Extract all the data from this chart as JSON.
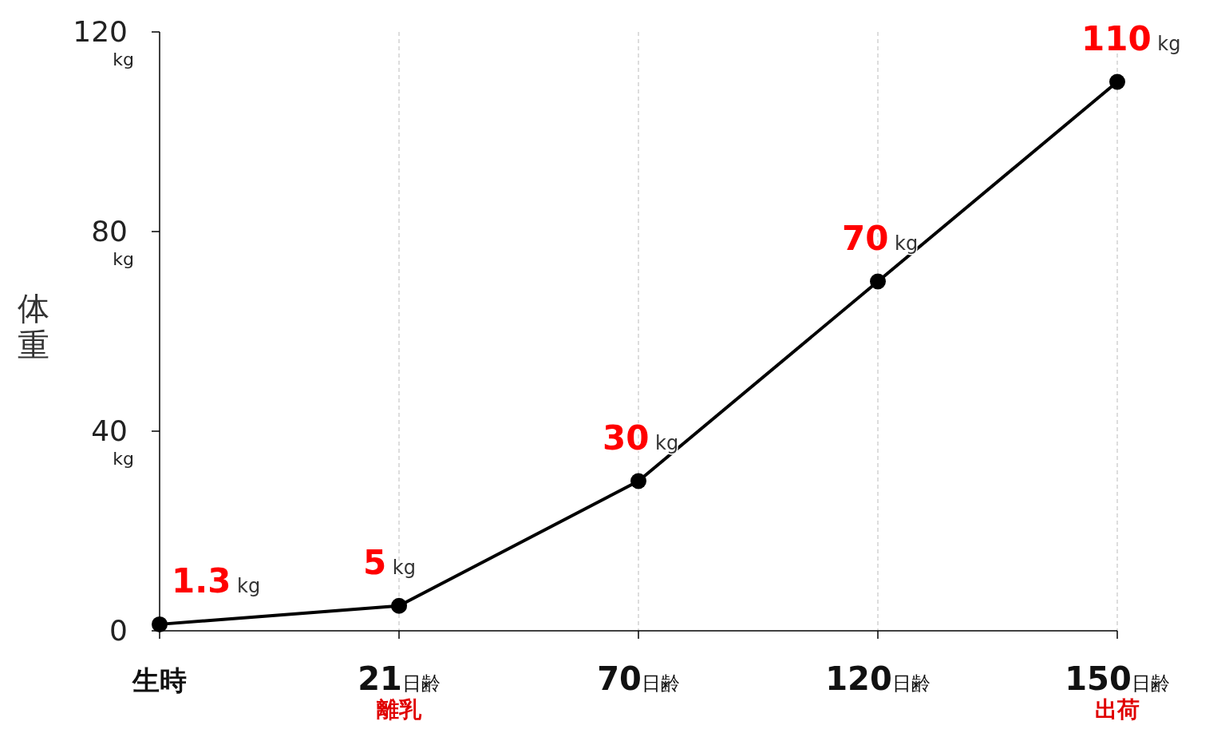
{
  "chart_data": {
    "type": "line",
    "ylabel": "体重",
    "categories": [
      "生時",
      "21日齢離乳",
      "70日齢",
      "120日齢",
      "150日齢出荷"
    ],
    "series": [
      {
        "color": "#000000",
        "values": [
          1.3,
          5,
          30,
          70,
          110
        ]
      }
    ],
    "value_labels": [
      "1.3 kg",
      "5 kg",
      "30 kg",
      "70 kg",
      "110 kg"
    ],
    "ylim": [
      0,
      120
    ],
    "yticks": [
      0,
      {
        "value": 40,
        "label": "40kg"
      },
      {
        "value": 80,
        "label": "80kg"
      },
      {
        "value": 120,
        "label": "120kg"
      }
    ],
    "grid": "x",
    "marker": "circle",
    "line_style": "solid"
  }
}
